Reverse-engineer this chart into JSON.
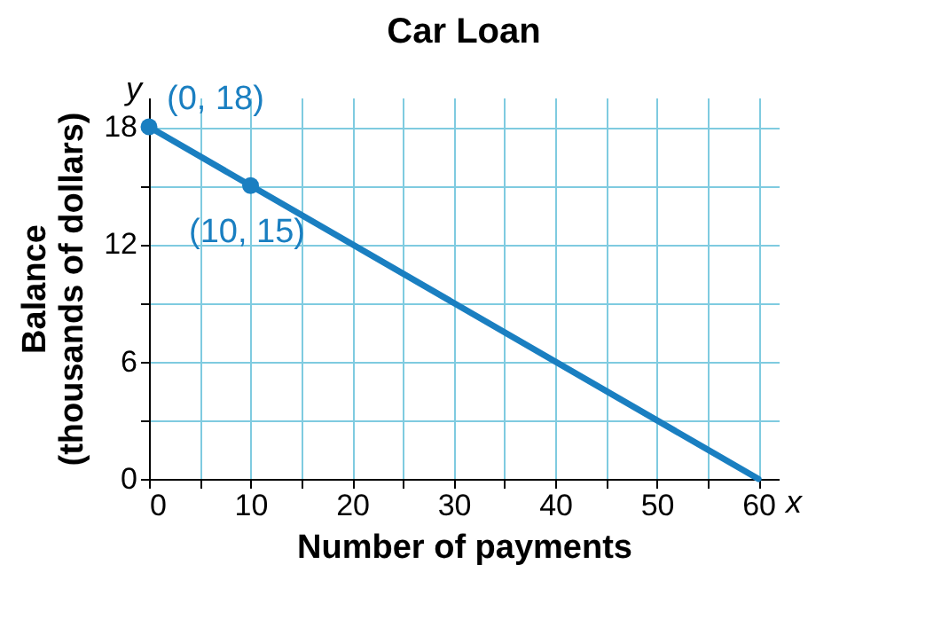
{
  "chart_data": {
    "type": "line",
    "title": "Car Loan",
    "xlabel": "Number of payments",
    "ylabel": "Balance\n(thousands of dollars)",
    "series": [
      {
        "type": "line",
        "color": "#1a7fc1",
        "x": [
          0,
          60
        ],
        "values": [
          18,
          0
        ],
        "marker": "none"
      },
      {
        "type": "scatter",
        "color": "#1a7fc1",
        "x": [
          0,
          10
        ],
        "values": [
          18,
          15
        ],
        "marker": "circle"
      }
    ],
    "xlim": [
      0,
      62
    ],
    "ylim": [
      0,
      19.5
    ],
    "xticks": [
      0,
      {
        "value": 5,
        "label": null
      },
      10,
      {
        "value": 15,
        "label": null
      },
      20,
      {
        "value": 25,
        "label": null
      },
      30,
      {
        "value": 35,
        "label": null
      },
      40,
      {
        "value": 45,
        "label": null
      },
      50,
      {
        "value": 55,
        "label": null
      },
      60
    ],
    "yticks": [
      0,
      {
        "value": 3,
        "label": null
      },
      6,
      {
        "value": 9,
        "label": null
      },
      12,
      {
        "value": 15,
        "label": null
      },
      18
    ],
    "grid": true,
    "legend": false,
    "annotations": [
      "x",
      "y",
      {
        "text": "(0, 18)",
        "x": 0,
        "y": 18
      },
      {
        "text": "(10, 15)",
        "x": 10,
        "y": 15
      }
    ]
  }
}
